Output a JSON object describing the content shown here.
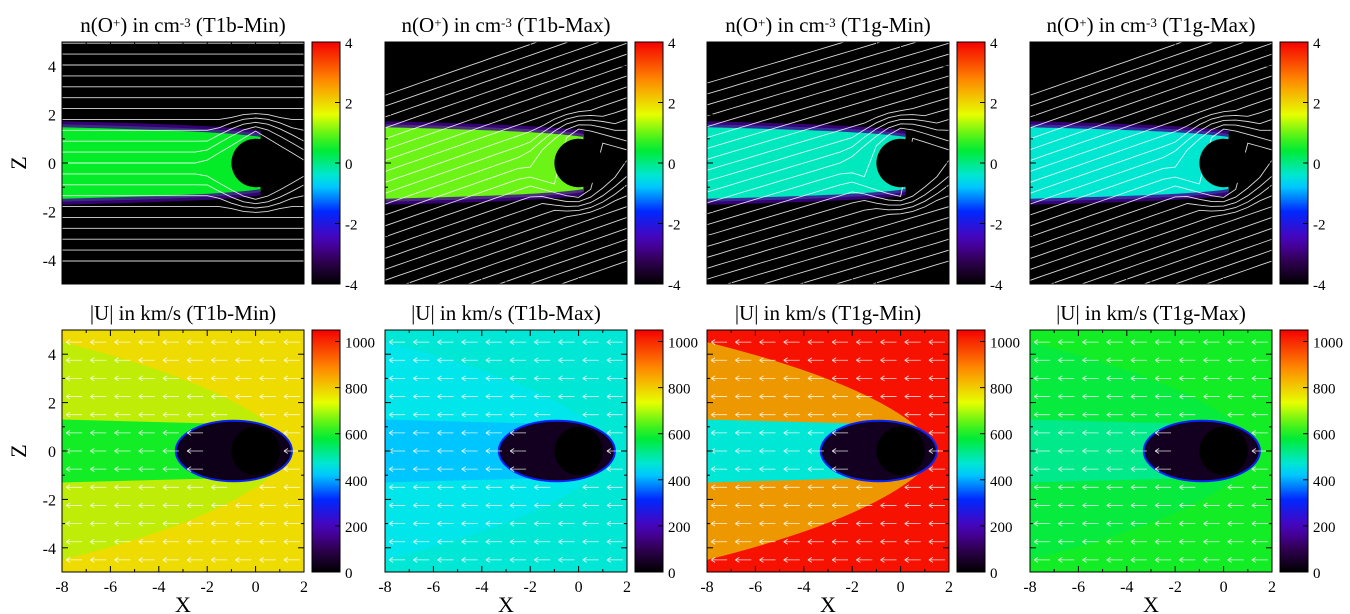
{
  "figure": {
    "axis_labels": {
      "x": "X",
      "z": "Z"
    },
    "density_cbar_ticks": [
      "4",
      "2",
      "0",
      "-2",
      "-4"
    ],
    "velocity_cbar_ticks": [
      "1000",
      "800",
      "600",
      "400",
      "200",
      "0"
    ]
  },
  "chart_data": [
    {
      "type": "heatmap",
      "quantity": "n(O+)",
      "unit": "cm-3",
      "case": "T1b-Min",
      "title_pre": "n(O",
      "title_sup1": "+",
      "title_mid": ") in cm",
      "title_sup2": "-3",
      "title_post": " (T1b-Min)",
      "xlim": [
        -8,
        2
      ],
      "ylim": [
        -5,
        5
      ],
      "clim": [
        -4,
        4
      ],
      "log_scale": true,
      "colorbar_ticks": [
        4,
        2,
        0,
        -2,
        -4
      ],
      "overlay": "streamlines",
      "background_value": -4.5,
      "tail_value": 0.5
    },
    {
      "type": "heatmap",
      "quantity": "n(O+)",
      "unit": "cm-3",
      "case": "T1b-Max",
      "title_pre": "n(O",
      "title_sup1": "+",
      "title_mid": ") in cm",
      "title_sup2": "-3",
      "title_post": " (T1b-Max)",
      "xlim": [
        -8,
        2
      ],
      "ylim": [
        -5,
        5
      ],
      "clim": [
        -4,
        4
      ],
      "log_scale": true,
      "colorbar_ticks": [
        4,
        2,
        0,
        -2,
        -4
      ],
      "overlay": "streamlines",
      "background_value": -4.5,
      "tail_value": 1.0
    },
    {
      "type": "heatmap",
      "quantity": "n(O+)",
      "unit": "cm-3",
      "case": "T1g-Min",
      "title_pre": "n(O",
      "title_sup1": "+",
      "title_mid": ") in cm",
      "title_sup2": "-3",
      "title_post": " (T1g-Min)",
      "xlim": [
        -8,
        2
      ],
      "ylim": [
        -5,
        5
      ],
      "clim": [
        -4,
        4
      ],
      "log_scale": true,
      "colorbar_ticks": [
        4,
        2,
        0,
        -2,
        -4
      ],
      "overlay": "streamlines",
      "background_value": -4.5,
      "tail_value": -0.3
    },
    {
      "type": "heatmap",
      "quantity": "n(O+)",
      "unit": "cm-3",
      "case": "T1g-Max",
      "title_pre": "n(O",
      "title_sup1": "+",
      "title_mid": ") in cm",
      "title_sup2": "-3",
      "title_post": " (T1g-Max)",
      "xlim": [
        -8,
        2
      ],
      "ylim": [
        -5,
        5
      ],
      "clim": [
        -4,
        4
      ],
      "log_scale": true,
      "colorbar_ticks": [
        4,
        2,
        0,
        -2,
        -4
      ],
      "overlay": "streamlines",
      "background_value": -4.5,
      "tail_value": -0.4
    },
    {
      "type": "heatmap",
      "quantity": "|U|",
      "unit": "km/s",
      "case": "T1b-Min",
      "title": "|U| in km/s (T1b-Min)",
      "xlim": [
        -8,
        2
      ],
      "ylim": [
        -5,
        5
      ],
      "clim": [
        0,
        1050
      ],
      "colorbar_ticks": [
        1000,
        800,
        600,
        400,
        200,
        0
      ],
      "overlay": "velocity vectors",
      "upstream_speed": 780,
      "tail_speed": 600,
      "cavity_speed": 30
    },
    {
      "type": "heatmap",
      "quantity": "|U|",
      "unit": "km/s",
      "case": "T1b-Max",
      "title": "|U| in km/s (T1b-Max)",
      "xlim": [
        -8,
        2
      ],
      "ylim": [
        -5,
        5
      ],
      "clim": [
        0,
        1050
      ],
      "colorbar_ticks": [
        1000,
        800,
        600,
        400,
        200,
        0
      ],
      "overlay": "velocity vectors",
      "upstream_speed": 470,
      "tail_speed": 420,
      "cavity_speed": 40
    },
    {
      "type": "heatmap",
      "quantity": "|U|",
      "unit": "km/s",
      "case": "T1g-Min",
      "title": "|U| in km/s (T1g-Min)",
      "xlim": [
        -8,
        2
      ],
      "ylim": [
        -5,
        5
      ],
      "clim": [
        0,
        1050
      ],
      "colorbar_ticks": [
        1000,
        800,
        600,
        400,
        200,
        0
      ],
      "overlay": "velocity vectors",
      "upstream_speed": 1030,
      "tail_speed": 470,
      "cavity_speed": 40
    },
    {
      "type": "heatmap",
      "quantity": "|U|",
      "unit": "km/s",
      "case": "T1g-Max",
      "title": "|U| in km/s (T1g-Max)",
      "xlim": [
        -8,
        2
      ],
      "ylim": [
        -5,
        5
      ],
      "clim": [
        0,
        1050
      ],
      "colorbar_ticks": [
        1000,
        800,
        600,
        400,
        200,
        0
      ],
      "overlay": "velocity vectors",
      "upstream_speed": 600,
      "tail_speed": 520,
      "cavity_speed": 40
    }
  ]
}
